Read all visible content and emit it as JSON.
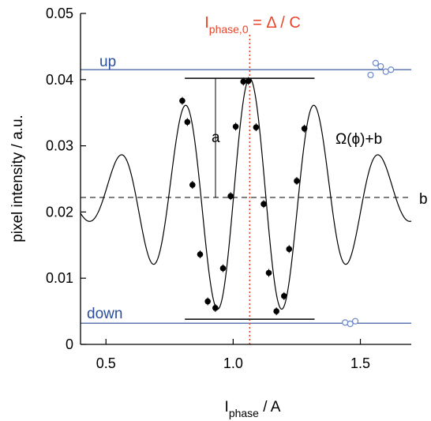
{
  "chart_data": {
    "type": "scatter",
    "xlabel_main": "I",
    "xlabel_sub": "phase",
    "xlabel_unit": " / A",
    "ylabel": "pixel intensity / a.u.",
    "xlim": [
      0.4,
      1.7
    ],
    "ylim": [
      0,
      0.05
    ],
    "xticks": [
      0.5,
      1.0,
      1.5
    ],
    "xtick_labels": [
      "0.5",
      "1.0",
      "1.5"
    ],
    "yticks": [
      0,
      0.01,
      0.02,
      0.03,
      0.04,
      0.05
    ],
    "ytick_labels": [
      "0",
      "0.01",
      "0.02",
      "0.03",
      "0.04",
      "0.05"
    ],
    "grid": false,
    "colors": {
      "points": "#000000",
      "fit": "#000000",
      "reference_lines": "#2a4e9a",
      "reference_points": "#6b87c9",
      "phase_line": "#e8452a"
    },
    "measured_points": [
      {
        "x": 0.8,
        "y": 0.0368
      },
      {
        "x": 0.82,
        "y": 0.0336
      },
      {
        "x": 0.84,
        "y": 0.0241
      },
      {
        "x": 0.87,
        "y": 0.0136
      },
      {
        "x": 0.9,
        "y": 0.0065
      },
      {
        "x": 0.93,
        "y": 0.0055
      },
      {
        "x": 0.96,
        "y": 0.0115
      },
      {
        "x": 0.99,
        "y": 0.0224
      },
      {
        "x": 1.01,
        "y": 0.0329
      },
      {
        "x": 1.04,
        "y": 0.0397
      },
      {
        "x": 1.06,
        "y": 0.0398
      },
      {
        "x": 1.09,
        "y": 0.0328
      },
      {
        "x": 1.12,
        "y": 0.0212
      },
      {
        "x": 1.14,
        "y": 0.0108
      },
      {
        "x": 1.17,
        "y": 0.005
      },
      {
        "x": 1.2,
        "y": 0.0073
      },
      {
        "x": 1.22,
        "y": 0.0144
      },
      {
        "x": 1.25,
        "y": 0.0247
      },
      {
        "x": 1.28,
        "y": 0.0326
      }
    ],
    "fit": {
      "label": "Ω(ϕ)+b",
      "baseline": 0.0222,
      "amplitude": 0.018,
      "center": 1.065,
      "period": 0.255,
      "envelope_width": 0.5
    },
    "reference_levels": {
      "up": {
        "label": "up",
        "y": 0.0415,
        "points": [
          {
            "x": 1.54,
            "y": 0.0407
          },
          {
            "x": 1.56,
            "y": 0.0425
          },
          {
            "x": 1.58,
            "y": 0.042
          },
          {
            "x": 1.6,
            "y": 0.0412
          },
          {
            "x": 1.62,
            "y": 0.0415
          }
        ]
      },
      "down": {
        "label": "down",
        "y": 0.0032,
        "points": [
          {
            "x": 1.44,
            "y": 0.0033
          },
          {
            "x": 1.46,
            "y": 0.0031
          },
          {
            "x": 1.48,
            "y": 0.0035
          }
        ]
      }
    },
    "baseline_label": "b",
    "amplitude_label": "a",
    "phase_label": {
      "main": "I",
      "sub": "phase,0",
      "rest": " = Δ / C",
      "x": 1.065
    },
    "envelope_bars": {
      "x_range": [
        0.81,
        1.32
      ],
      "top": 0.0402,
      "bottom": 0.0038
    }
  }
}
